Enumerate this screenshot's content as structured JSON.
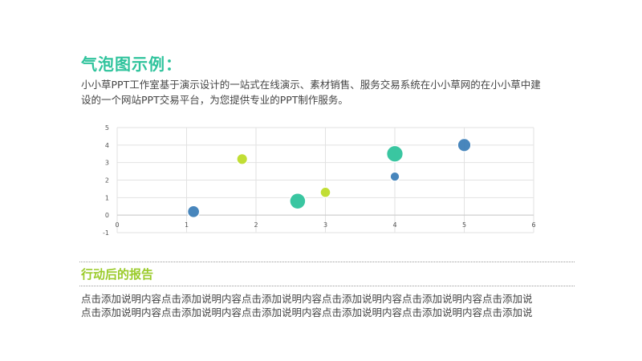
{
  "slide": {
    "title": "气泡图示例：",
    "description_lines": [
      "小小草PPT工作室基于演示设计的一站式在线演示、素材销售、服务交易系统在小小草网的在小小草中建",
      "设的一个网站PPT交易平台，为您提供专业的PPT制作服务。"
    ],
    "section_title": "行动后的报告",
    "body_lines": [
      "点击添加说明内容点击添加说明内容点击添加说明内容点击添加说明内容点击添加说明内容点击添加说",
      "点击添加说明内容点击添加说明内容点击添加说明内容点击添加说明内容点击添加说明内容点击添加说"
    ]
  },
  "colors": {
    "blue": "#3e7fb8",
    "teal": "#2fc39c",
    "lime": "#bedc2a",
    "grid": "#e2e2e2",
    "axis_text": "#555555"
  },
  "chart_data": {
    "type": "scatter",
    "variant": "bubble",
    "title": "",
    "xlabel": "",
    "ylabel": "",
    "xlim": [
      0,
      6
    ],
    "ylim": [
      -1,
      5
    ],
    "xticks": [
      0,
      1,
      2,
      3,
      4,
      5,
      6
    ],
    "yticks": [
      -1,
      0,
      1,
      2,
      3,
      4,
      5
    ],
    "grid": true,
    "legend": "none",
    "points": [
      {
        "x": 1.1,
        "y": 0.2,
        "size": 1.5,
        "color": "blue"
      },
      {
        "x": 1.8,
        "y": 3.2,
        "size": 1.2,
        "color": "lime"
      },
      {
        "x": 2.6,
        "y": 0.8,
        "size": 2.6,
        "color": "teal"
      },
      {
        "x": 3.0,
        "y": 1.3,
        "size": 1.1,
        "color": "lime"
      },
      {
        "x": 4.0,
        "y": 3.5,
        "size": 2.8,
        "color": "teal"
      },
      {
        "x": 4.0,
        "y": 2.2,
        "size": 0.9,
        "color": "blue"
      },
      {
        "x": 5.0,
        "y": 4.0,
        "size": 1.8,
        "color": "blue"
      }
    ]
  }
}
